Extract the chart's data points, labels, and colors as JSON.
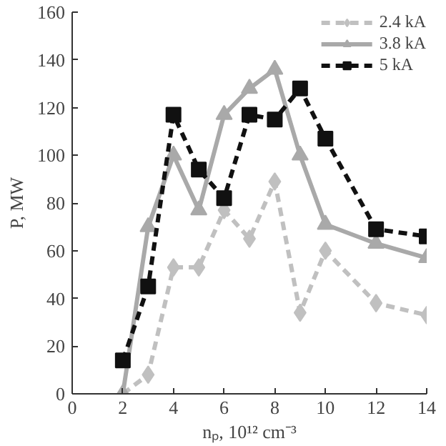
{
  "chart_data": {
    "type": "line",
    "xlabel": "nₚ, 10¹² cm⁻³",
    "ylabel": "P, MW",
    "x": [
      2,
      3,
      4,
      5,
      6,
      7,
      8,
      9,
      10,
      12,
      14
    ],
    "xlim": [
      0,
      14
    ],
    "xticks": [
      0,
      2,
      4,
      6,
      8,
      10,
      12,
      14
    ],
    "ylim": [
      0,
      160
    ],
    "yticks": [
      0,
      20,
      40,
      60,
      80,
      100,
      120,
      140,
      160
    ],
    "grid": false,
    "legend": "top right",
    "series": [
      {
        "name": "2.4 kA",
        "color": "#c0c0c0",
        "marker": "diamond",
        "line_style": "dashed",
        "values": [
          0,
          8,
          53,
          53,
          77,
          65,
          89,
          34,
          60,
          38,
          33
        ]
      },
      {
        "name": "3.8 kA",
        "color": "#a9a9a9",
        "marker": "triangle",
        "line_style": "solid",
        "values": [
          0,
          70,
          100,
          77,
          117,
          128,
          136,
          100,
          71,
          63,
          57
        ]
      },
      {
        "name": "5 kA",
        "color": "#111111",
        "marker": "square",
        "line_style": "dashed",
        "values": [
          14,
          45,
          117,
          94,
          82,
          117,
          115,
          128,
          107,
          69,
          66
        ]
      }
    ]
  }
}
